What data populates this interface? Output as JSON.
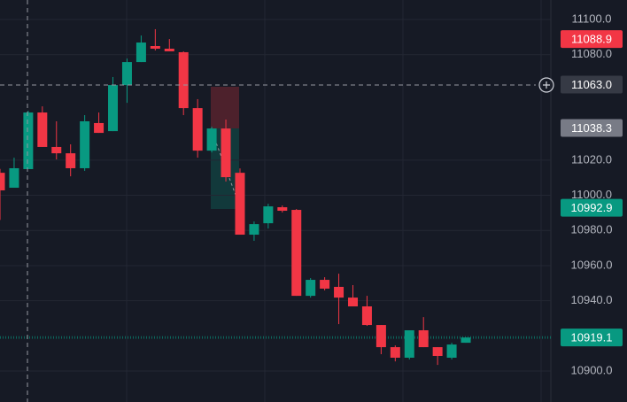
{
  "chart_data": {
    "type": "candlestick",
    "up_color": "#089981",
    "down_color": "#f23645",
    "open": [
      11012.8,
      11004.3,
      11014.9,
      11047.1,
      11027.5,
      11023.9,
      11015.4,
      11041.1,
      11036.5,
      11062.7,
      11075.8,
      11084.9,
      11083.4,
      11081.4,
      11049.6,
      11025.4,
      11038.0,
      11012.8,
      10977.6,
      10984.1,
      10993.2,
      10991.7,
      10942.8,
      10951.9,
      10947.9,
      10941.8,
      10936.8,
      10926.2,
      10913.6,
      10907.6,
      10923.2,
      10913.6,
      10907.6,
      10916.1
    ],
    "high": [
      11015.0,
      11021.4,
      11048.1,
      11050.6,
      11042.1,
      11029.0,
      11045.6,
      11047.1,
      11067.3,
      11077.8,
      11090.9,
      11094.5,
      11088.9,
      11081.9,
      11054.7,
      11039.0,
      11043.1,
      11015.3,
      10985.1,
      10995.2,
      10994.2,
      10992.2,
      10952.9,
      10953.4,
      10955.4,
      10948.9,
      10942.8,
      10926.2,
      10914.6,
      10923.2,
      10930.7,
      10913.6,
      10916.1,
      10919.1
    ],
    "low": [
      10986.0,
      11004.3,
      11014.9,
      11027.5,
      11020.4,
      11010.8,
      11013.9,
      11035.5,
      11036.5,
      11052.6,
      11075.8,
      11082.4,
      11081.9,
      11045.6,
      11021.4,
      11024.4,
      11007.8,
      10977.6,
      10974.1,
      10981.1,
      10990.2,
      10942.8,
      10941.8,
      10945.9,
      10926.7,
      10936.8,
      10925.7,
      10909.6,
      10905.5,
      10906.6,
      10913.6,
      10903.5,
      10906.6,
      10916.1
    ],
    "close": [
      11002.8,
      11015.4,
      11047.1,
      11027.5,
      11023.9,
      11015.4,
      11042.1,
      11035.5,
      11062.7,
      11075.8,
      11086.9,
      11083.4,
      11081.9,
      11049.6,
      11025.4,
      11038.0,
      11010.3,
      10977.6,
      10983.6,
      10993.7,
      10991.2,
      10942.8,
      10951.9,
      10946.9,
      10941.8,
      10936.8,
      10926.2,
      10913.6,
      10907.6,
      10923.2,
      10913.6,
      10908.6,
      10915.1,
      10919.1
    ],
    "ylim": [
      10882.4,
      11111.1
    ],
    "yticks": [
      {
        "value": 11100,
        "label": "11100.0"
      },
      {
        "value": 11080,
        "label": "11080.0"
      },
      {
        "value": 11020,
        "label": "11020.0"
      },
      {
        "value": 11000,
        "label": "11000.0"
      },
      {
        "value": 10980,
        "label": "10980.0"
      },
      {
        "value": 10960,
        "label": "10960.0"
      },
      {
        "value": 10940,
        "label": "10940.0"
      },
      {
        "value": 10900,
        "label": "10900.0"
      }
    ],
    "grid": true,
    "price_labels": [
      {
        "value": 11088.9,
        "label": "11088.9",
        "color": "#f23645"
      },
      {
        "value": 11063.0,
        "label": "11063.0",
        "color": "#363a45"
      },
      {
        "value": 11038.3,
        "label": "11038.3",
        "color": "#787b86"
      },
      {
        "value": 10992.9,
        "label": "10992.9",
        "color": "#089981"
      },
      {
        "value": 10919.1,
        "label": "10919.1",
        "color": "#089981"
      }
    ]
  }
}
